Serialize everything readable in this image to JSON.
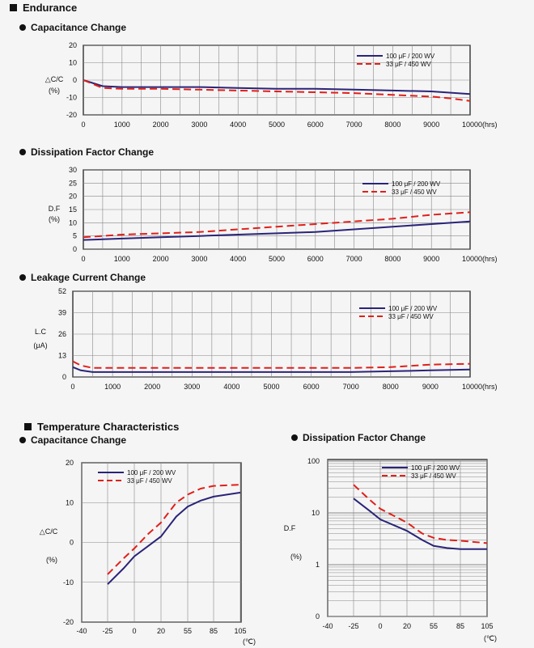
{
  "sections": {
    "endurance": "Endurance",
    "temperature": "Temperature Characteristics"
  },
  "chart_data": [
    {
      "id": "end_cap",
      "type": "line",
      "title": "Capacitance Change",
      "ylabel": [
        "△C/C",
        "(%)"
      ],
      "xunit": "10000(hrs)",
      "x_ticks": [
        0,
        1000,
        2000,
        3000,
        4000,
        5000,
        6000,
        7000,
        8000,
        9000,
        10000
      ],
      "y_ticks": [
        20,
        10,
        0,
        -10,
        -20
      ],
      "xlim": [
        0,
        10000
      ],
      "ylim": [
        -20,
        20
      ],
      "legend_position": "top-right",
      "series": [
        {
          "name": "100 μF / 200 WV",
          "color": "#2a2478",
          "dash": false,
          "x": [
            0,
            500,
            1000,
            2000,
            3000,
            4000,
            5000,
            6000,
            7000,
            8000,
            9000,
            10000
          ],
          "y": [
            0,
            -3.5,
            -4,
            -4,
            -4,
            -4.5,
            -5,
            -5,
            -5.5,
            -6,
            -6.5,
            -8
          ]
        },
        {
          "name": "33 μF / 450 WV",
          "color": "#e0201b",
          "dash": true,
          "x": [
            0,
            500,
            1000,
            2000,
            3000,
            4000,
            5000,
            6000,
            7000,
            8000,
            9000,
            9500,
            10000
          ],
          "y": [
            0,
            -4.5,
            -5,
            -5,
            -5.5,
            -6,
            -6.5,
            -7,
            -7.5,
            -8.5,
            -9.5,
            -10.5,
            -12
          ]
        }
      ]
    },
    {
      "id": "end_df",
      "type": "line",
      "title": "Dissipation Factor Change",
      "ylabel": [
        "D.F",
        "(%)"
      ],
      "xunit": "10000(hrs)",
      "x_ticks": [
        0,
        1000,
        2000,
        3000,
        4000,
        5000,
        6000,
        7000,
        8000,
        9000,
        10000
      ],
      "y_ticks": [
        30,
        25,
        20,
        15,
        10,
        5,
        0
      ],
      "xlim": [
        0,
        10000
      ],
      "ylim": [
        0,
        30
      ],
      "legend_position": "top-right",
      "series": [
        {
          "name": "100 μF / 200 WV",
          "color": "#2a2478",
          "dash": false,
          "x": [
            0,
            1000,
            2000,
            3000,
            4000,
            5000,
            6000,
            7000,
            8000,
            9000,
            10000
          ],
          "y": [
            3.5,
            4,
            4.5,
            5,
            5.5,
            6,
            6.5,
            7.5,
            8.5,
            9.5,
            10.5
          ]
        },
        {
          "name": "33 μF / 450 WV",
          "color": "#e0201b",
          "dash": true,
          "x": [
            0,
            1000,
            2000,
            3000,
            4000,
            5000,
            6000,
            7000,
            8000,
            9000,
            10000
          ],
          "y": [
            4.5,
            5.5,
            6,
            6.5,
            7.5,
            8.5,
            9.5,
            10.5,
            11.5,
            13,
            14
          ]
        }
      ]
    },
    {
      "id": "end_lc",
      "type": "line",
      "title": "Leakage Current Change",
      "ylabel": [
        "L.C",
        "(μA)"
      ],
      "xunit": "10000(hrs)",
      "x_ticks": [
        0,
        1000,
        2000,
        3000,
        4000,
        5000,
        6000,
        7000,
        8000,
        9000,
        10000
      ],
      "y_ticks": [
        52,
        39,
        26,
        13,
        0
      ],
      "xlim": [
        0,
        10000
      ],
      "ylim": [
        0,
        52
      ],
      "legend_position": "top-right",
      "series": [
        {
          "name": "100 μF / 200 WV",
          "color": "#2a2478",
          "dash": false,
          "x": [
            0,
            200,
            500,
            1000,
            2000,
            3000,
            4000,
            5000,
            6000,
            7000,
            8000,
            9000,
            10000
          ],
          "y": [
            6,
            4,
            3,
            3,
            3,
            3,
            3,
            3,
            3,
            3,
            3.5,
            4,
            4.5
          ]
        },
        {
          "name": "33 μF / 450 WV",
          "color": "#e0201b",
          "dash": true,
          "x": [
            0,
            200,
            500,
            1000,
            2000,
            3000,
            4000,
            5000,
            6000,
            7000,
            8000,
            9000,
            10000
          ],
          "y": [
            9.5,
            7,
            5.5,
            5.5,
            5.5,
            5.5,
            5.5,
            5.5,
            5.5,
            5.5,
            6,
            7.5,
            8
          ]
        }
      ]
    },
    {
      "id": "temp_cap",
      "type": "line",
      "title": "Capacitance Change",
      "ylabel": [
        "△C/C",
        "(%)"
      ],
      "xunit": "(℃)",
      "x_ticks": [
        -40,
        -25,
        0,
        20,
        55,
        85,
        105
      ],
      "y_ticks": [
        20,
        10,
        0,
        -10,
        -20
      ],
      "ylim": [
        -20,
        20
      ],
      "legend_position": "top-left",
      "series": [
        {
          "name": "100 μF / 200 WV",
          "color": "#2a2478",
          "dash": false,
          "x": [
            -25,
            -10,
            0,
            10,
            20,
            30,
            40,
            55,
            70,
            85,
            105
          ],
          "y": [
            -10.5,
            -6.5,
            -3.5,
            -1,
            1.5,
            4,
            6.5,
            9,
            10.5,
            11.5,
            12.5
          ]
        },
        {
          "name": "33 μF / 450 WV",
          "color": "#e0201b",
          "dash": true,
          "x": [
            -25,
            -10,
            0,
            10,
            20,
            30,
            40,
            55,
            70,
            85,
            105
          ],
          "y": [
            -8,
            -4,
            -1.5,
            2,
            5,
            7.5,
            10,
            12,
            13.5,
            14.2,
            14.5
          ]
        }
      ]
    },
    {
      "id": "temp_df",
      "type": "line",
      "title": "Dissipation Factor Change",
      "ylabel": [
        "D.F",
        "(%)"
      ],
      "xunit": "(℃)",
      "x_ticks": [
        -40,
        -25,
        0,
        20,
        55,
        85,
        105
      ],
      "y_ticks": [
        100,
        10,
        1,
        0
      ],
      "y_scale": "log",
      "legend_position": "top-right",
      "series": [
        {
          "name": "100 μF / 200 WV",
          "color": "#2a2478",
          "dash": false,
          "x": [
            -25,
            -10,
            0,
            20,
            40,
            55,
            70,
            85,
            105
          ],
          "y": [
            19,
            11,
            7.5,
            4.5,
            3,
            2.3,
            2.1,
            2,
            2
          ]
        },
        {
          "name": "33 μF / 450 WV",
          "color": "#e0201b",
          "dash": true,
          "x": [
            -25,
            -10,
            0,
            20,
            40,
            55,
            70,
            85,
            105
          ],
          "y": [
            35,
            18,
            12,
            6.5,
            4,
            3.3,
            3,
            2.9,
            2.6
          ]
        }
      ]
    }
  ]
}
